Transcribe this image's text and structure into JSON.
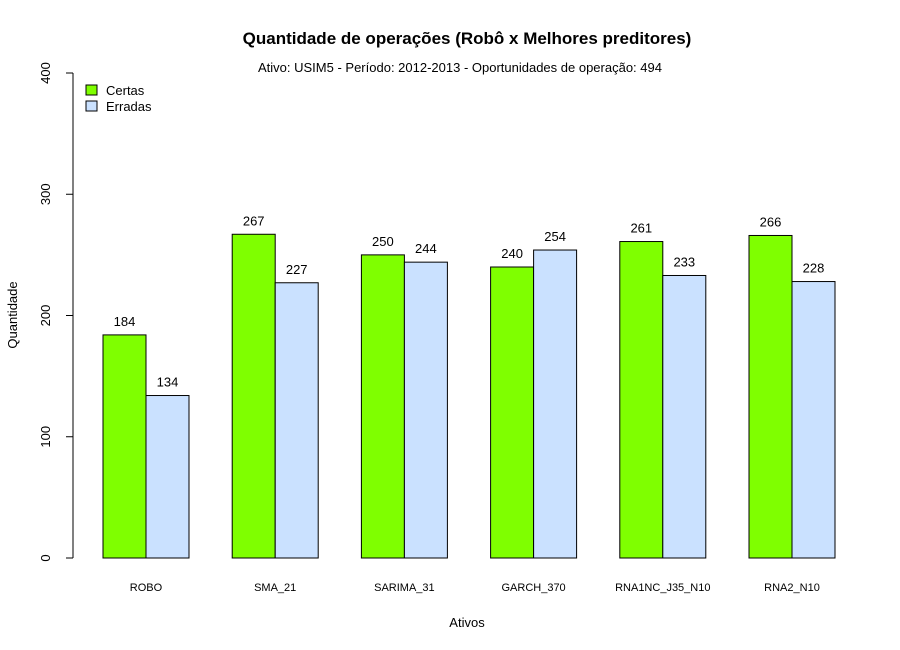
{
  "chart_data": {
    "type": "bar",
    "title": "Quantidade de operações (Robô x Melhores preditores)",
    "subtitle": "Ativo:  USIM5  - Período: 2012-2013 - Oportunidades de operação: 494",
    "xlabel": "Ativos",
    "ylabel": "Quantidade",
    "ylim": [
      0,
      400
    ],
    "yticks": [
      "0",
      "100",
      "200",
      "300",
      "400"
    ],
    "categories": [
      "ROBO",
      "SMA_21",
      "SARIMA_31",
      "GARCH_370",
      "RNA1NC_J35_N10",
      "RNA2_N10"
    ],
    "series": [
      {
        "name": "Certas",
        "color": "#7fff00",
        "values": [
          184,
          267,
          250,
          240,
          261,
          266
        ]
      },
      {
        "name": "Erradas",
        "color": "#cae1ff",
        "values": [
          134,
          227,
          244,
          254,
          233,
          228
        ]
      }
    ],
    "legend_position": "top-left",
    "grid": false
  }
}
